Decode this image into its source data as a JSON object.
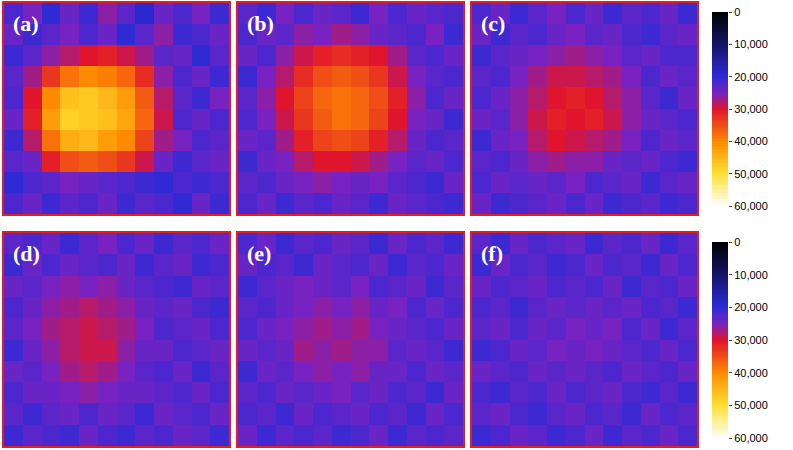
{
  "chart_data": {
    "type": "heatmap",
    "panels": [
      {
        "title": "(a)",
        "cells": [
          [
            22000,
            25000,
            20000,
            24000,
            21000,
            26000,
            23000,
            19000,
            24000,
            22000,
            25000,
            21000
          ],
          [
            24000,
            21000,
            23000,
            25000,
            22000,
            24000,
            20000,
            23000,
            26000,
            21000,
            22000,
            24000
          ],
          [
            21000,
            23000,
            26000,
            28000,
            30000,
            31000,
            29000,
            27000,
            23000,
            24000,
            20000,
            23000
          ],
          [
            23000,
            27000,
            33000,
            38000,
            40000,
            39000,
            37000,
            32000,
            26000,
            22000,
            24000,
            21000
          ],
          [
            22000,
            30000,
            40000,
            46000,
            47000,
            45000,
            42000,
            36000,
            28000,
            23000,
            21000,
            25000
          ],
          [
            24000,
            31000,
            42000,
            48000,
            47000,
            46000,
            43000,
            37000,
            29000,
            22000,
            24000,
            22000
          ],
          [
            21000,
            28000,
            38000,
            44000,
            45000,
            42000,
            40000,
            34000,
            27000,
            25000,
            22000,
            23000
          ],
          [
            23000,
            24000,
            31000,
            35000,
            36000,
            35000,
            33000,
            29000,
            24000,
            21000,
            23000,
            24000
          ],
          [
            20000,
            22000,
            23000,
            25000,
            24000,
            23000,
            22000,
            21000,
            20000,
            22000,
            21000,
            22000
          ],
          [
            22000,
            24000,
            21000,
            23000,
            22000,
            24000,
            21000,
            23000,
            22000,
            20000,
            24000,
            21000
          ]
        ]
      },
      {
        "title": "(b)",
        "cells": [
          [
            23000,
            21000,
            25000,
            22000,
            24000,
            23000,
            21000,
            25000,
            22000,
            24000,
            23000,
            22000
          ],
          [
            22000,
            24000,
            23000,
            26000,
            25000,
            27000,
            26000,
            24000,
            23000,
            22000,
            25000,
            21000
          ],
          [
            24000,
            22000,
            26000,
            29000,
            31000,
            32000,
            31000,
            30000,
            27000,
            23000,
            22000,
            24000
          ],
          [
            21000,
            25000,
            28000,
            32000,
            35000,
            36000,
            35000,
            33000,
            29000,
            25000,
            23000,
            22000
          ],
          [
            23000,
            26000,
            30000,
            34000,
            37000,
            38000,
            37000,
            35000,
            31000,
            26000,
            22000,
            24000
          ],
          [
            22000,
            25000,
            29000,
            33000,
            36000,
            38000,
            37000,
            34000,
            30000,
            25000,
            24000,
            21000
          ],
          [
            24000,
            23000,
            27000,
            31000,
            34000,
            35000,
            34000,
            31000,
            28000,
            24000,
            22000,
            23000
          ],
          [
            21000,
            24000,
            25000,
            28000,
            30000,
            30000,
            29000,
            27000,
            25000,
            23000,
            24000,
            22000
          ],
          [
            23000,
            22000,
            24000,
            25000,
            26000,
            25000,
            24000,
            25000,
            23000,
            22000,
            21000,
            24000
          ],
          [
            22000,
            24000,
            21000,
            23000,
            22000,
            24000,
            23000,
            21000,
            24000,
            23000,
            22000,
            21000
          ]
        ]
      },
      {
        "title": "(c)",
        "cells": [
          [
            22000,
            24000,
            21000,
            23000,
            25000,
            22000,
            24000,
            21000,
            23000,
            22000,
            24000,
            21000
          ],
          [
            24000,
            21000,
            23000,
            22000,
            24000,
            25000,
            23000,
            24000,
            22000,
            21000,
            23000,
            24000
          ],
          [
            21000,
            23000,
            24000,
            25000,
            26000,
            27000,
            26000,
            25000,
            23000,
            24000,
            22000,
            22000
          ],
          [
            23000,
            22000,
            25000,
            27000,
            29000,
            29000,
            28000,
            27000,
            25000,
            22000,
            24000,
            23000
          ],
          [
            22000,
            24000,
            26000,
            28000,
            30000,
            31000,
            30000,
            28000,
            26000,
            23000,
            21000,
            24000
          ],
          [
            24000,
            23000,
            26000,
            29000,
            31000,
            30000,
            31000,
            29000,
            26000,
            24000,
            23000,
            22000
          ],
          [
            21000,
            24000,
            25000,
            28000,
            30000,
            29000,
            28000,
            27000,
            25000,
            22000,
            24000,
            23000
          ],
          [
            23000,
            22000,
            24000,
            26000,
            27000,
            26000,
            26000,
            24000,
            23000,
            24000,
            22000,
            21000
          ],
          [
            22000,
            24000,
            23000,
            24000,
            23000,
            25000,
            22000,
            23000,
            24000,
            21000,
            23000,
            24000
          ],
          [
            24000,
            21000,
            22000,
            23000,
            24000,
            22000,
            24000,
            21000,
            22000,
            23000,
            21000,
            22000
          ]
        ]
      },
      {
        "title": "(d)",
        "cells": [
          [
            23000,
            22000,
            24000,
            21000,
            23000,
            25000,
            22000,
            24000,
            21000,
            23000,
            22000,
            24000
          ],
          [
            21000,
            24000,
            22000,
            24000,
            23000,
            22000,
            24000,
            21000,
            23000,
            24000,
            21000,
            22000
          ],
          [
            24000,
            23000,
            25000,
            26000,
            25000,
            26000,
            24000,
            23000,
            22000,
            21000,
            24000,
            23000
          ],
          [
            22000,
            24000,
            26000,
            27000,
            28000,
            27000,
            26000,
            24000,
            23000,
            24000,
            22000,
            21000
          ],
          [
            23000,
            25000,
            27000,
            28000,
            29000,
            28000,
            27000,
            25000,
            22000,
            23000,
            24000,
            22000
          ],
          [
            21000,
            24000,
            26000,
            28000,
            29000,
            29000,
            26000,
            24000,
            24000,
            22000,
            23000,
            24000
          ],
          [
            24000,
            23000,
            25000,
            27000,
            28000,
            27000,
            25000,
            23000,
            22000,
            24000,
            21000,
            23000
          ],
          [
            22000,
            24000,
            24000,
            25000,
            26000,
            25000,
            24000,
            24000,
            23000,
            22000,
            24000,
            22000
          ],
          [
            23000,
            21000,
            23000,
            24000,
            22000,
            24000,
            23000,
            21000,
            24000,
            23000,
            22000,
            24000
          ],
          [
            21000,
            23000,
            22000,
            21000,
            24000,
            22000,
            21000,
            23000,
            22000,
            24000,
            23000,
            21000
          ]
        ]
      },
      {
        "title": "(e)",
        "cells": [
          [
            22000,
            24000,
            21000,
            23000,
            22000,
            24000,
            23000,
            21000,
            24000,
            22000,
            23000,
            21000
          ],
          [
            24000,
            22000,
            23000,
            21000,
            24000,
            23000,
            22000,
            24000,
            21000,
            23000,
            22000,
            24000
          ],
          [
            21000,
            23000,
            24000,
            25000,
            24000,
            23000,
            25000,
            22000,
            23000,
            24000,
            21000,
            23000
          ],
          [
            23000,
            22000,
            24000,
            25000,
            26000,
            25000,
            26000,
            24000,
            25000,
            22000,
            24000,
            22000
          ],
          [
            22000,
            24000,
            25000,
            26000,
            27000,
            26000,
            27000,
            25000,
            24000,
            23000,
            22000,
            24000
          ],
          [
            24000,
            23000,
            24000,
            27000,
            26000,
            27000,
            26000,
            26000,
            23000,
            24000,
            23000,
            21000
          ],
          [
            21000,
            24000,
            23000,
            25000,
            26000,
            25000,
            26000,
            24000,
            24000,
            22000,
            24000,
            23000
          ],
          [
            23000,
            22000,
            24000,
            23000,
            24000,
            25000,
            23000,
            24000,
            22000,
            23000,
            21000,
            24000
          ],
          [
            22000,
            23000,
            21000,
            24000,
            22000,
            23000,
            24000,
            22000,
            23000,
            21000,
            24000,
            22000
          ],
          [
            24000,
            21000,
            23000,
            22000,
            23000,
            21000,
            22000,
            24000,
            21000,
            23000,
            22000,
            23000
          ]
        ]
      },
      {
        "title": "(f)",
        "cells": [
          [
            23000,
            21000,
            24000,
            22000,
            23000,
            24000,
            21000,
            23000,
            22000,
            24000,
            21000,
            23000
          ],
          [
            21000,
            24000,
            22000,
            23000,
            21000,
            22000,
            24000,
            22000,
            23000,
            21000,
            24000,
            22000
          ],
          [
            24000,
            22000,
            23000,
            24000,
            22000,
            23000,
            22000,
            24000,
            21000,
            23000,
            22000,
            24000
          ],
          [
            22000,
            23000,
            21000,
            23000,
            24000,
            23000,
            24000,
            23000,
            24000,
            22000,
            23000,
            21000
          ],
          [
            23000,
            24000,
            22000,
            24000,
            23000,
            25000,
            24000,
            25000,
            22000,
            24000,
            21000,
            23000
          ],
          [
            21000,
            22000,
            24000,
            23000,
            25000,
            24000,
            25000,
            24000,
            23000,
            22000,
            24000,
            22000
          ],
          [
            24000,
            23000,
            22000,
            24000,
            23000,
            24000,
            23000,
            22000,
            24000,
            23000,
            22000,
            24000
          ],
          [
            22000,
            21000,
            23000,
            22000,
            24000,
            22000,
            23000,
            24000,
            22000,
            21000,
            23000,
            21000
          ],
          [
            23000,
            24000,
            22000,
            21000,
            23000,
            24000,
            22000,
            23000,
            21000,
            24000,
            22000,
            23000
          ],
          [
            21000,
            22000,
            24000,
            23000,
            21000,
            22000,
            24000,
            21000,
            23000,
            22000,
            24000,
            22000
          ]
        ]
      }
    ],
    "colorbars": [
      {
        "range": [
          0,
          60000
        ],
        "ticks": [
          0,
          {
            "value": 10000,
            "label": "10,000"
          },
          {
            "value": 20000,
            "label": "20,000"
          },
          {
            "value": 30000,
            "label": "30,000"
          },
          {
            "value": 40000,
            "label": "40,000"
          },
          {
            "value": 50000,
            "label": "50,000"
          },
          {
            "value": 60000,
            "label": "60,000"
          }
        ]
      },
      {
        "range": [
          0,
          60000
        ],
        "ticks": [
          0,
          {
            "value": 10000,
            "label": "10,000"
          },
          {
            "value": 20000,
            "label": "20,000"
          },
          {
            "value": 30000,
            "label": "30,000"
          },
          {
            "value": 40000,
            "label": "40,000"
          },
          {
            "value": 50000,
            "label": "50,000"
          },
          {
            "value": 60000,
            "label": "60,000"
          }
        ]
      }
    ]
  }
}
